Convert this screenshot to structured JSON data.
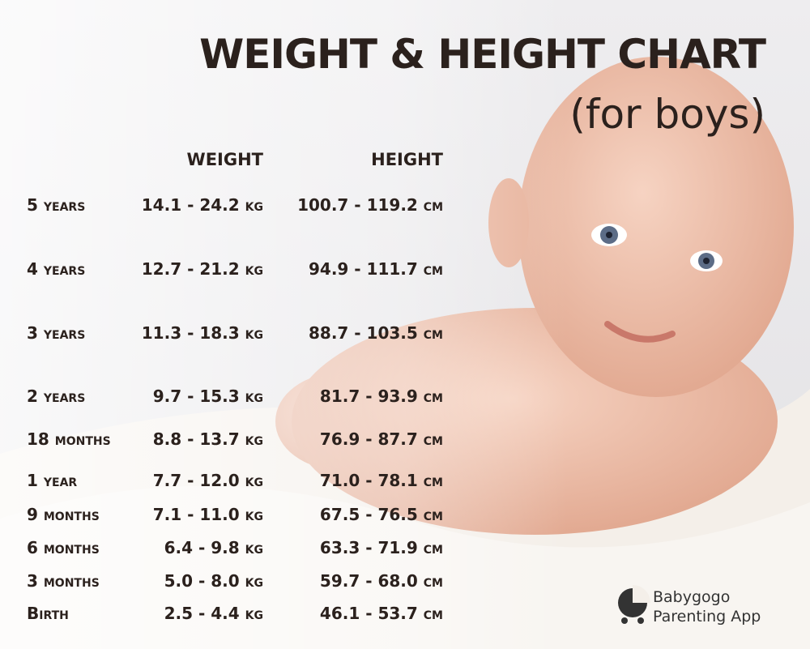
{
  "header": {
    "title": "WEIGHT & HEIGHT CHART",
    "subtitle": "(for boys)"
  },
  "table": {
    "columns": [
      "WEIGHT",
      "HEIGHT"
    ],
    "rows": [
      [
        "5 years",
        "14.1 - 24.2 kg",
        "100.7 - 119.2 cm"
      ],
      [
        "4 years",
        "12.7 - 21.2 kg",
        "94.9 - 111.7 cm"
      ],
      [
        "3 years",
        "11.3 - 18.3 kg",
        "88.7 - 103.5 cm"
      ],
      [
        "2 years",
        "9.7 - 15.3 kg",
        "81.7 - 93.9 cm"
      ],
      [
        "18 months",
        "8.8 - 13.7 kg",
        "76.9 - 87.7 cm"
      ],
      [
        "1 year",
        "7.7 - 12.0 kg",
        "71.0 - 78.1 cm"
      ],
      [
        "9 months",
        "7.1 - 11.0 kg",
        "67.5 - 76.5 cm"
      ],
      [
        "6 months",
        "6.4 - 9.8 kg",
        "63.3 - 71.9 cm"
      ],
      [
        "3 months",
        "5.0 - 8.0 kg",
        "59.7 - 68.0 cm"
      ],
      [
        "Birth",
        "2.5 - 4.4 kg",
        "46.1 - 53.7 cm"
      ]
    ]
  },
  "brand": {
    "name": "Babygogo",
    "tagline": "Parenting App"
  }
}
